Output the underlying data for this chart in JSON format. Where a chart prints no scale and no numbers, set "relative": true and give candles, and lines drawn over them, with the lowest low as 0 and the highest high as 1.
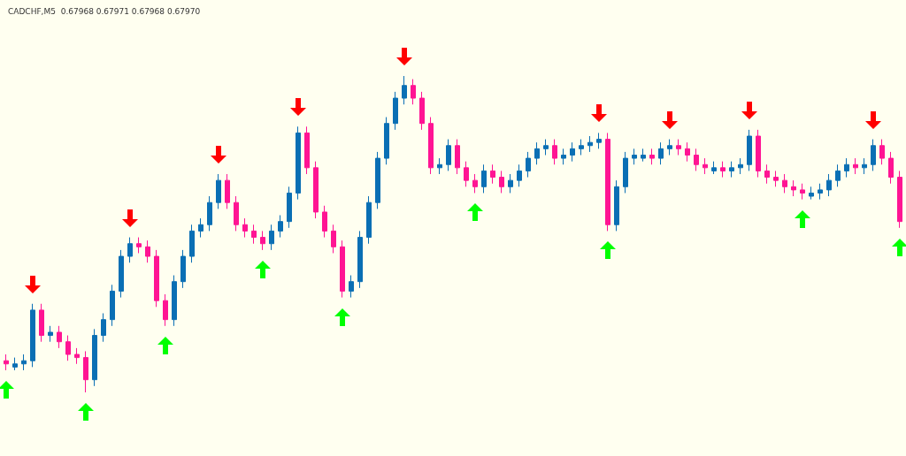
{
  "chart_data": {
    "type": "candlestick",
    "title": "CADCHF,M5  0.67968 0.67971 0.67968 0.67970",
    "relative": true,
    "categories": [
      null,
      null,
      null,
      null,
      null,
      null,
      null,
      null,
      null,
      null,
      null,
      null,
      null,
      null,
      null,
      null,
      null,
      null,
      null,
      null,
      null,
      null,
      null,
      null,
      null,
      null,
      null,
      null,
      null,
      null,
      null,
      null,
      null,
      null,
      null,
      null,
      null,
      null,
      null,
      null,
      null,
      null,
      null,
      null,
      null,
      null,
      null,
      null,
      null,
      null,
      null,
      null,
      null,
      null,
      null,
      null,
      null,
      null,
      null,
      null,
      null,
      null,
      null,
      null,
      null,
      null,
      null,
      null,
      null,
      null,
      null,
      null,
      null,
      null,
      null,
      null,
      null,
      null,
      null,
      null,
      null,
      null,
      null,
      null,
      null,
      null,
      null,
      null,
      null,
      null,
      null,
      null,
      null,
      null,
      null,
      null,
      null,
      null,
      null,
      null,
      null,
      null
    ],
    "ohlc": [
      [
        0.1,
        0.12,
        0.07,
        0.09
      ],
      [
        0.08,
        0.11,
        0.07,
        0.09
      ],
      [
        0.09,
        0.12,
        0.07,
        0.1
      ],
      [
        0.1,
        0.28,
        0.08,
        0.26
      ],
      [
        0.26,
        0.28,
        0.16,
        0.18
      ],
      [
        0.18,
        0.21,
        0.16,
        0.19
      ],
      [
        0.19,
        0.21,
        0.14,
        0.16
      ],
      [
        0.16,
        0.18,
        0.1,
        0.12
      ],
      [
        0.12,
        0.14,
        0.09,
        0.11
      ],
      [
        0.11,
        0.13,
        0,
        0.04
      ],
      [
        0.04,
        0.2,
        0.02,
        0.18
      ],
      [
        0.18,
        0.25,
        0.16,
        0.23
      ],
      [
        0.23,
        0.34,
        0.21,
        0.32
      ],
      [
        0.32,
        0.45,
        0.3,
        0.43
      ],
      [
        0.43,
        0.49,
        0.41,
        0.47
      ],
      [
        0.47,
        0.49,
        0.44,
        0.46
      ],
      [
        0.46,
        0.48,
        0.41,
        0.43
      ],
      [
        0.43,
        0.45,
        0.27,
        0.29
      ],
      [
        0.29,
        0.31,
        0.21,
        0.23
      ],
      [
        0.23,
        0.37,
        0.21,
        0.35
      ],
      [
        0.35,
        0.45,
        0.33,
        0.43
      ],
      [
        0.43,
        0.53,
        0.41,
        0.51
      ],
      [
        0.51,
        0.55,
        0.49,
        0.53
      ],
      [
        0.53,
        0.62,
        0.51,
        0.6
      ],
      [
        0.6,
        0.69,
        0.58,
        0.67
      ],
      [
        0.67,
        0.69,
        0.58,
        0.6
      ],
      [
        0.6,
        0.62,
        0.51,
        0.53
      ],
      [
        0.53,
        0.55,
        0.49,
        0.51
      ],
      [
        0.51,
        0.53,
        0.47,
        0.49
      ],
      [
        0.49,
        0.51,
        0.45,
        0.47
      ],
      [
        0.47,
        0.53,
        0.45,
        0.51
      ],
      [
        0.51,
        0.56,
        0.49,
        0.54
      ],
      [
        0.54,
        0.65,
        0.52,
        0.63
      ],
      [
        0.63,
        0.84,
        0.61,
        0.82
      ],
      [
        0.82,
        0.84,
        0.69,
        0.71
      ],
      [
        0.71,
        0.73,
        0.55,
        0.57
      ],
      [
        0.57,
        0.59,
        0.49,
        0.51
      ],
      [
        0.51,
        0.53,
        0.44,
        0.46
      ],
      [
        0.46,
        0.48,
        0.3,
        0.32
      ],
      [
        0.32,
        0.37,
        0.3,
        0.35
      ],
      [
        0.35,
        0.51,
        0.33,
        0.49
      ],
      [
        0.49,
        0.62,
        0.47,
        0.6
      ],
      [
        0.6,
        0.76,
        0.58,
        0.74
      ],
      [
        0.74,
        0.87,
        0.72,
        0.85
      ],
      [
        0.85,
        0.95,
        0.83,
        0.93
      ],
      [
        0.93,
        1,
        0.91,
        0.97
      ],
      [
        0.97,
        0.99,
        0.91,
        0.93
      ],
      [
        0.93,
        0.95,
        0.83,
        0.85
      ],
      [
        0.85,
        0.87,
        0.69,
        0.71
      ],
      [
        0.71,
        0.74,
        0.69,
        0.72
      ],
      [
        0.72,
        0.8,
        0.7,
        0.78
      ],
      [
        0.78,
        0.8,
        0.69,
        0.71
      ],
      [
        0.71,
        0.73,
        0.65,
        0.67
      ],
      [
        0.67,
        0.69,
        0.63,
        0.65
      ],
      [
        0.65,
        0.72,
        0.63,
        0.7
      ],
      [
        0.7,
        0.72,
        0.66,
        0.68
      ],
      [
        0.68,
        0.7,
        0.63,
        0.65
      ],
      [
        0.65,
        0.69,
        0.63,
        0.67
      ],
      [
        0.67,
        0.72,
        0.65,
        0.7
      ],
      [
        0.7,
        0.76,
        0.68,
        0.74
      ],
      [
        0.74,
        0.79,
        0.72,
        0.77
      ],
      [
        0.77,
        0.8,
        0.75,
        0.78
      ],
      [
        0.78,
        0.8,
        0.72,
        0.74
      ],
      [
        0.74,
        0.77,
        0.72,
        0.75
      ],
      [
        0.75,
        0.79,
        0.73,
        0.77
      ],
      [
        0.77,
        0.8,
        0.75,
        0.78
      ],
      [
        0.78,
        0.81,
        0.76,
        0.79
      ],
      [
        0.79,
        0.82,
        0.77,
        0.8
      ],
      [
        0.8,
        0.82,
        0.51,
        0.53
      ],
      [
        0.53,
        0.67,
        0.51,
        0.65
      ],
      [
        0.65,
        0.76,
        0.63,
        0.74
      ],
      [
        0.74,
        0.77,
        0.72,
        0.75
      ],
      [
        0.74,
        0.77,
        0.73,
        0.75
      ],
      [
        0.75,
        0.77,
        0.72,
        0.74
      ],
      [
        0.74,
        0.79,
        0.72,
        0.77
      ],
      [
        0.77,
        0.8,
        0.75,
        0.78
      ],
      [
        0.78,
        0.8,
        0.75,
        0.77
      ],
      [
        0.77,
        0.79,
        0.73,
        0.75
      ],
      [
        0.75,
        0.77,
        0.7,
        0.72
      ],
      [
        0.72,
        0.74,
        0.69,
        0.71
      ],
      [
        0.7,
        0.73,
        0.69,
        0.71
      ],
      [
        0.71,
        0.73,
        0.68,
        0.7
      ],
      [
        0.7,
        0.73,
        0.68,
        0.71
      ],
      [
        0.71,
        0.74,
        0.69,
        0.72
      ],
      [
        0.72,
        0.83,
        0.7,
        0.81
      ],
      [
        0.81,
        0.83,
        0.68,
        0.7
      ],
      [
        0.7,
        0.72,
        0.66,
        0.68
      ],
      [
        0.68,
        0.7,
        0.65,
        0.67
      ],
      [
        0.67,
        0.69,
        0.63,
        0.65
      ],
      [
        0.65,
        0.67,
        0.62,
        0.64
      ],
      [
        0.64,
        0.66,
        0.61,
        0.63
      ],
      [
        0.62,
        0.65,
        0.61,
        0.63
      ],
      [
        0.63,
        0.66,
        0.61,
        0.64
      ],
      [
        0.64,
        0.69,
        0.62,
        0.67
      ],
      [
        0.67,
        0.72,
        0.65,
        0.7
      ],
      [
        0.7,
        0.74,
        0.68,
        0.72
      ],
      [
        0.72,
        0.74,
        0.69,
        0.71
      ],
      [
        0.71,
        0.74,
        0.69,
        0.72
      ],
      [
        0.72,
        0.8,
        0.7,
        0.78
      ],
      [
        0.78,
        0.8,
        0.72,
        0.74
      ],
      [
        0.74,
        0.76,
        0.66,
        0.68
      ],
      [
        0.68,
        0.7,
        0.52,
        0.54
      ]
    ],
    "colors": [
      "#ff1493",
      "#0a6fb4",
      "#0a6fb4",
      "#0a6fb4",
      "#ff1493",
      "#0a6fb4",
      "#ff1493",
      "#ff1493",
      "#ff1493",
      "#ff1493",
      "#0a6fb4",
      "#0a6fb4",
      "#0a6fb4",
      "#0a6fb4",
      "#0a6fb4",
      "#ff1493",
      "#ff1493",
      "#ff1493",
      "#ff1493",
      "#0a6fb4",
      "#0a6fb4",
      "#0a6fb4",
      "#0a6fb4",
      "#0a6fb4",
      "#0a6fb4",
      "#ff1493",
      "#ff1493",
      "#ff1493",
      "#ff1493",
      "#ff1493",
      "#0a6fb4",
      "#0a6fb4",
      "#0a6fb4",
      "#0a6fb4",
      "#ff1493",
      "#ff1493",
      "#ff1493",
      "#ff1493",
      "#ff1493",
      "#0a6fb4",
      "#0a6fb4",
      "#0a6fb4",
      "#0a6fb4",
      "#0a6fb4",
      "#0a6fb4",
      "#0a6fb4",
      "#ff1493",
      "#ff1493",
      "#ff1493",
      "#0a6fb4",
      "#0a6fb4",
      "#ff1493",
      "#ff1493",
      "#ff1493",
      "#0a6fb4",
      "#ff1493",
      "#ff1493",
      "#0a6fb4",
      "#0a6fb4",
      "#0a6fb4",
      "#0a6fb4",
      "#0a6fb4",
      "#ff1493",
      "#0a6fb4",
      "#0a6fb4",
      "#0a6fb4",
      "#0a6fb4",
      "#0a6fb4",
      "#ff1493",
      "#0a6fb4",
      "#0a6fb4",
      "#0a6fb4",
      "#0a6fb4",
      "#ff1493",
      "#0a6fb4",
      "#0a6fb4",
      "#ff1493",
      "#ff1493",
      "#ff1493",
      "#ff1493",
      "#0a6fb4",
      "#ff1493",
      "#0a6fb4",
      "#0a6fb4",
      "#0a6fb4",
      "#ff1493",
      "#ff1493",
      "#ff1493",
      "#ff1493",
      "#ff1493",
      "#ff1493",
      "#0a6fb4",
      "#0a6fb4",
      "#0a6fb4",
      "#0a6fb4",
      "#0a6fb4",
      "#ff1493",
      "#0a6fb4",
      "#0a6fb4",
      "#ff1493",
      "#ff1493",
      "#ff1493"
    ]
  }
}
